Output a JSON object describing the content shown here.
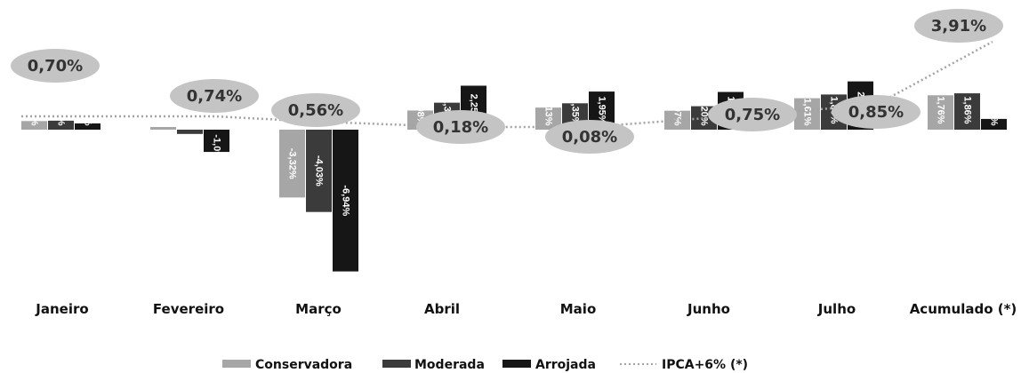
{
  "chart_data": {
    "type": "bar",
    "categories": [
      "Janeiro",
      "Fevereiro",
      "Março",
      "Abril",
      "Maio",
      "Junho",
      "Julho",
      "Acumulado (*)"
    ],
    "series": [
      {
        "name": "Conservadora",
        "color": "#a6a6a6",
        "values": [
          0.44,
          0.02,
          -3.32,
          0.98,
          1.13,
          0.97,
          1.61,
          1.76
        ],
        "labels": [
          "0,44%",
          "0,02%",
          "-3,32%",
          "0,98%",
          "1,13%",
          "0,97%",
          "1,61%",
          "1,76%"
        ]
      },
      {
        "name": "Moderada",
        "color": "#3b3b3b",
        "values": [
          0.46,
          -0.21,
          -4.03,
          1.38,
          1.35,
          1.2,
          1.8,
          1.86
        ],
        "labels": [
          "0,46%",
          "-0,21%",
          "-4,03%",
          "1,38%",
          "1,35%",
          "1,20%",
          "1,80%",
          "1,86%"
        ]
      },
      {
        "name": "Arrojada",
        "color": "#161616",
        "values": [
          0.32,
          -1.09,
          -6.94,
          2.25,
          1.95,
          1.93,
          2.47,
          0.55
        ],
        "labels": [
          "0,32%",
          "-1,09%",
          "-6,94%",
          "2,25%",
          "1,95%",
          "1,93%",
          "2,47%",
          "0,55%"
        ]
      }
    ],
    "ipca": {
      "name": "IPCA+6% (*)",
      "values": [
        0.7,
        0.74,
        0.56,
        0.18,
        0.08,
        0.75,
        0.85,
        3.91
      ],
      "labels": [
        "0,70%",
        "0,74%",
        "0,56%",
        "0,18%",
        "0,08%",
        "0,75%",
        "0,85%",
        "3,91%"
      ],
      "color": "#a3a3a3",
      "ellipse_color": "#c4c4c4"
    },
    "xlabel": "",
    "ylabel": "",
    "grid": false,
    "legend": "bottom-center"
  },
  "legend": {
    "conservadora": "Conservadora",
    "moderada": "Moderada",
    "arrojada": "Arrojada",
    "ipca": "IPCA+6% (*)"
  }
}
